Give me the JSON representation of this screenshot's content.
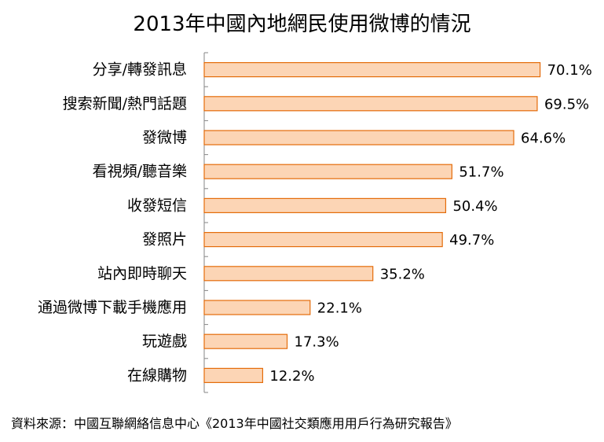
{
  "chart_data": {
    "type": "bar",
    "orientation": "horizontal",
    "title": "2013年中國內地網民使用微博的情況",
    "categories": [
      "分享/轉發訊息",
      "搜索新聞/熱門話題",
      "發微博",
      "看視頻/聽音樂",
      "收發短信",
      "發照片",
      "站內即時聊天",
      "通過微博下載手機應用",
      "玩遊戲",
      "在線購物"
    ],
    "values": [
      70.1,
      69.5,
      64.6,
      51.7,
      50.4,
      49.7,
      35.2,
      22.1,
      17.3,
      12.2
    ],
    "value_labels": [
      "70.1%",
      "69.5%",
      "64.6%",
      "51.7%",
      "50.4%",
      "49.7%",
      "35.2%",
      "22.1%",
      "17.3%",
      "12.2%"
    ],
    "xlim": [
      0,
      70.1
    ],
    "grid": false,
    "legend": "none",
    "bar_fill": "#fcd5b5",
    "bar_stroke": "#e46c0a",
    "axis_color": "#868686"
  },
  "source": "資料來源：中國互聯網絡信息中心《2013年中國社交類應用用戶行為研究報告》"
}
